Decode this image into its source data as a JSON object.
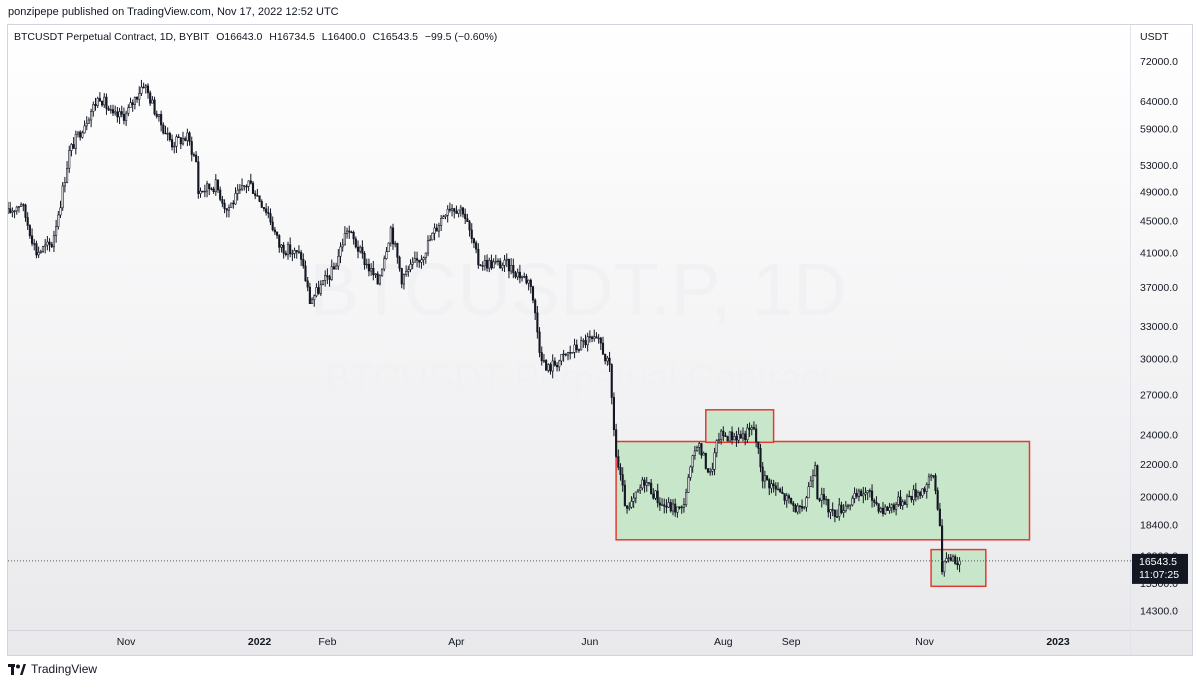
{
  "header": {
    "published_text": "ponzipepe published on TradingView.com, Nov 17, 2022 12:52 UTC"
  },
  "legend": {
    "symbol": "BTCUSDT Perpetual Contract, 1D, BYBIT",
    "open": "O16643.0",
    "high": "H16734.5",
    "low": "L16400.0",
    "close": "C16543.5",
    "change": "−99.5 (−0.60%)"
  },
  "watermark": {
    "line1": "BTCUSDT.P, 1D",
    "line2": "BTCUSDT Perpetual Contract"
  },
  "price_badge": {
    "price": "16543.5",
    "countdown": "11:07:25"
  },
  "footer": {
    "brand": "TradingView"
  },
  "colors": {
    "box_fill": "#c8e6c9",
    "box_border": "#e53935",
    "candle": "#131722",
    "badge_bg": "#131722"
  },
  "chart_data": {
    "type": "candlestick",
    "currency_label": "USDT",
    "y_scale": "log",
    "y_ticks": [
      72000.0,
      64000.0,
      59000.0,
      53000.0,
      49000.0,
      45000.0,
      41000.0,
      37000.0,
      33000.0,
      30000.0,
      27000.0,
      24000.0,
      22000.0,
      20000.0,
      18400.0,
      16800.0,
      15500.0,
      14300.0
    ],
    "y_tick_labels": [
      "72000.0",
      "64000.0",
      "59000.0",
      "53000.0",
      "49000.0",
      "45000.0",
      "41000.0",
      "37000.0",
      "33000.0",
      "30000.0",
      "27000.0",
      "24000.0",
      "22000.0",
      "20000.0",
      "18400.0",
      "16800.0",
      "15500.0",
      "14300.0"
    ],
    "ylim": [
      13500,
      80000
    ],
    "x_labels": [
      {
        "label": "Nov",
        "date": "2021-11-01",
        "bold": false
      },
      {
        "label": "2022",
        "date": "2022-01-01",
        "bold": true
      },
      {
        "label": "Feb",
        "date": "2022-02-01",
        "bold": false
      },
      {
        "label": "Apr",
        "date": "2022-04-01",
        "bold": false
      },
      {
        "label": "Jun",
        "date": "2022-06-01",
        "bold": false
      },
      {
        "label": "Aug",
        "date": "2022-08-01",
        "bold": false
      },
      {
        "label": "Sep",
        "date": "2022-09-01",
        "bold": false
      },
      {
        "label": "Nov",
        "date": "2022-11-01",
        "bold": false
      },
      {
        "label": "2023",
        "date": "2023-01-01",
        "bold": true
      }
    ],
    "xlim": [
      "2021-09-08",
      "2023-02-02"
    ],
    "last_price": 16543.5,
    "price_path": [
      [
        "2021-09-08",
        46000
      ],
      [
        "2021-09-14",
        47500
      ],
      [
        "2021-09-21",
        41000
      ],
      [
        "2021-09-28",
        42000
      ],
      [
        "2021-10-02",
        47500
      ],
      [
        "2021-10-06",
        55000
      ],
      [
        "2021-10-15",
        61500
      ],
      [
        "2021-10-20",
        65000
      ],
      [
        "2021-10-26",
        61000
      ],
      [
        "2021-11-01",
        61500
      ],
      [
        "2021-11-09",
        67500
      ],
      [
        "2021-11-16",
        60500
      ],
      [
        "2021-11-22",
        56500
      ],
      [
        "2021-11-29",
        57500
      ],
      [
        "2021-12-03",
        53500
      ],
      [
        "2021-12-04",
        49000
      ],
      [
        "2021-12-12",
        50000
      ],
      [
        "2021-12-17",
        46500
      ],
      [
        "2021-12-27",
        50500
      ],
      [
        "2022-01-05",
        46000
      ],
      [
        "2022-01-10",
        41800
      ],
      [
        "2022-01-20",
        40500
      ],
      [
        "2022-01-24",
        35500
      ],
      [
        "2022-02-04",
        39000
      ],
      [
        "2022-02-10",
        44000
      ],
      [
        "2022-02-18",
        40000
      ],
      [
        "2022-02-24",
        37500
      ],
      [
        "2022-03-02",
        44000
      ],
      [
        "2022-03-07",
        38000
      ],
      [
        "2022-03-16",
        40500
      ],
      [
        "2022-03-28",
        47000
      ],
      [
        "2022-04-04",
        46500
      ],
      [
        "2022-04-11",
        39800
      ],
      [
        "2022-04-24",
        39500
      ],
      [
        "2022-05-05",
        37500
      ],
      [
        "2022-05-09",
        31000
      ],
      [
        "2022-05-12",
        29000
      ],
      [
        "2022-05-31",
        31700
      ],
      [
        "2022-06-06",
        31300
      ],
      [
        "2022-06-10",
        29000
      ],
      [
        "2022-06-13",
        22500
      ],
      [
        "2022-06-18",
        19000
      ],
      [
        "2022-06-26",
        21000
      ],
      [
        "2022-07-04",
        19500
      ],
      [
        "2022-07-13",
        19200
      ],
      [
        "2022-07-20",
        23500
      ],
      [
        "2022-07-26",
        21300
      ],
      [
        "2022-07-30",
        23900
      ],
      [
        "2022-08-10",
        23900
      ],
      [
        "2022-08-15",
        24400
      ],
      [
        "2022-08-19",
        21200
      ],
      [
        "2022-08-26",
        20300
      ],
      [
        "2022-09-06",
        19000
      ],
      [
        "2022-09-12",
        22200
      ],
      [
        "2022-09-13",
        20200
      ],
      [
        "2022-09-20",
        19000
      ],
      [
        "2022-10-05",
        20300
      ],
      [
        "2022-10-13",
        19200
      ],
      [
        "2022-10-25",
        20000
      ],
      [
        "2022-11-01",
        20500
      ],
      [
        "2022-11-05",
        21300
      ],
      [
        "2022-11-08",
        18600
      ],
      [
        "2022-11-09",
        16000
      ],
      [
        "2022-11-12",
        16800
      ],
      [
        "2022-11-16",
        16600
      ],
      [
        "2022-11-17",
        16543.5
      ]
    ],
    "rectangles": [
      {
        "name": "range-box",
        "x0": "2022-06-13",
        "x1": "2022-12-19",
        "y0": 17600,
        "y1": 23500
      },
      {
        "name": "top-box",
        "x0": "2022-07-24",
        "x1": "2022-08-24",
        "y0": 23450,
        "y1": 25800
      },
      {
        "name": "bottom-box",
        "x0": "2022-11-04",
        "x1": "2022-11-29",
        "y0": 15350,
        "y1": 17100
      }
    ]
  }
}
